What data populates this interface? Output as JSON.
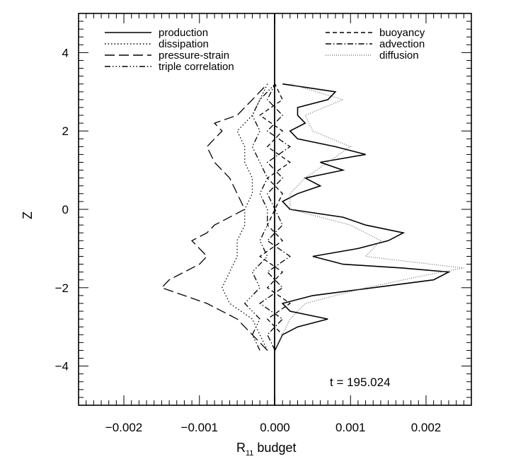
{
  "chart_data": {
    "type": "line",
    "title": "",
    "xlabel_main": "R",
    "xlabel_sub": "11",
    "xlabel_rest": " budget",
    "ylabel": "Z",
    "xlim": [
      -0.0026,
      0.0026
    ],
    "ylim": [
      -5,
      5
    ],
    "xticks": [
      -0.002,
      -0.001,
      0.0,
      0.001,
      0.002
    ],
    "xtick_labels": [
      "−0.002",
      "−0.001",
      "0.000",
      "0.001",
      "0.002"
    ],
    "yticks": [
      -4,
      -2,
      0,
      2,
      4
    ],
    "ytick_labels": [
      "−4",
      "−2",
      "0",
      "2",
      "4"
    ],
    "grid": false,
    "legend_placement": "top",
    "annotation": "t = 195.024",
    "series": [
      {
        "name": "production",
        "dash": "solid",
        "z": [
          -3.6,
          -3.4,
          -3.2,
          -3.0,
          -2.8,
          -2.6,
          -2.4,
          -2.2,
          -2.0,
          -1.8,
          -1.6,
          -1.5,
          -1.4,
          -1.2,
          -1.0,
          -0.8,
          -0.6,
          -0.4,
          -0.2,
          0.0,
          0.2,
          0.4,
          0.6,
          0.8,
          1.0,
          1.2,
          1.4,
          1.6,
          1.8,
          2.0,
          2.2,
          2.4,
          2.6,
          2.8,
          3.0,
          3.2
        ],
        "x": [
          0.0,
          5e-05,
          0.0001,
          0.0003,
          0.0007,
          0.0002,
          0.0001,
          0.0005,
          0.0013,
          0.0021,
          0.0023,
          0.0017,
          0.0009,
          0.0005,
          0.0011,
          0.0015,
          0.0017,
          0.0012,
          0.0009,
          0.0002,
          0.0001,
          0.0003,
          0.0006,
          0.0004,
          0.0009,
          0.0006,
          0.0012,
          0.0008,
          0.0003,
          0.0002,
          0.0004,
          0.0003,
          0.0003,
          0.0007,
          0.0008,
          0.0001
        ]
      },
      {
        "name": "dissipation",
        "dash": "dotted",
        "z": [
          -3.6,
          -3.2,
          -2.8,
          -2.4,
          -2.0,
          -1.6,
          -1.2,
          -0.8,
          -0.4,
          0.0,
          0.4,
          0.8,
          1.2,
          1.6,
          2.0,
          2.4,
          2.8,
          3.2
        ],
        "x": [
          -0.0001,
          -0.0002,
          -0.0003,
          -0.0006,
          -0.0007,
          -0.0006,
          -0.0005,
          -0.0005,
          -0.0004,
          -0.0004,
          -0.0003,
          -0.0003,
          -0.0004,
          -0.0004,
          -0.0005,
          -0.0003,
          -0.0002,
          -0.0001
        ]
      },
      {
        "name": "pressure-strain",
        "dash": "longdash",
        "z": [
          -3.6,
          -3.2,
          -2.8,
          -2.4,
          -2.2,
          -2.0,
          -1.8,
          -1.6,
          -1.4,
          -1.2,
          -1.0,
          -0.8,
          -0.6,
          -0.4,
          -0.2,
          0.0,
          0.4,
          0.8,
          1.2,
          1.6,
          1.8,
          2.0,
          2.2,
          2.4,
          2.8,
          3.2
        ],
        "x": [
          -0.0001,
          -0.0003,
          -0.0005,
          -0.0009,
          -0.0012,
          -0.0015,
          -0.0014,
          -0.0012,
          -0.001,
          -0.0009,
          -0.001,
          -0.0011,
          -0.0009,
          -0.0008,
          -0.0006,
          -0.0004,
          -0.0005,
          -0.0006,
          -0.0008,
          -0.0009,
          -0.0008,
          -0.0007,
          -0.0008,
          -0.0005,
          -0.0003,
          -0.0001
        ]
      },
      {
        "name": "triple correlation",
        "dash": "dashdotdotdot",
        "z": [
          -3.6,
          -3.2,
          -2.8,
          -2.4,
          -2.0,
          -1.6,
          -1.2,
          -0.8,
          -0.4,
          0.0,
          0.4,
          0.8,
          1.2,
          1.6,
          2.0,
          2.4,
          2.8,
          3.2
        ],
        "x": [
          -0.0002,
          -0.0003,
          -0.0002,
          -0.0004,
          -0.0002,
          -0.0003,
          -0.0001,
          -0.0002,
          -0.0001,
          -0.0001,
          -0.0002,
          -0.0001,
          -0.0002,
          -0.0003,
          -0.0002,
          -0.0003,
          -0.0002,
          0.0
        ]
      },
      {
        "name": "buoyancy",
        "dash": "dashed",
        "z": [
          -3.6,
          -3.2,
          -2.8,
          -2.4,
          -2.0,
          -1.6,
          -1.2,
          -0.8,
          -0.4,
          0.0,
          0.4,
          0.8,
          1.2,
          1.6,
          2.0,
          2.4,
          2.8,
          3.2
        ],
        "x": [
          0.0,
          0.0001,
          -0.0001,
          0.0002,
          -0.0001,
          0.0001,
          -0.0002,
          0.0001,
          -0.0001,
          0.0,
          0.0001,
          -0.0001,
          0.0002,
          -0.0001,
          0.0001,
          -0.0002,
          0.0001,
          0.0
        ]
      },
      {
        "name": "advection",
        "dash": "dashdot",
        "z": [
          -3.6,
          -3.2,
          -2.8,
          -2.4,
          -2.0,
          -1.6,
          -1.2,
          -0.8,
          -0.4,
          0.0,
          0.4,
          0.8,
          1.2,
          1.6,
          2.0,
          2.4,
          2.8,
          3.2
        ],
        "x": [
          0.0,
          -0.0001,
          0.0001,
          -0.0002,
          0.0001,
          -0.0001,
          0.0002,
          -0.0001,
          0.0001,
          0.0,
          -0.0001,
          0.0001,
          -0.0001,
          0.0002,
          -0.0001,
          0.0001,
          -0.0001,
          0.0
        ]
      },
      {
        "name": "diffusion",
        "dash": "finedot",
        "z": [
          -3.6,
          -3.2,
          -2.8,
          -2.4,
          -2.0,
          -1.6,
          -1.5,
          -1.2,
          -0.8,
          -0.4,
          0.0,
          0.4,
          0.8,
          1.2,
          1.6,
          2.0,
          2.4,
          2.8,
          3.2
        ],
        "x": [
          0.0,
          0.0001,
          0.0002,
          0.0004,
          0.0012,
          0.0022,
          0.0025,
          0.0012,
          0.0014,
          0.001,
          0.0002,
          0.0002,
          0.0004,
          0.0007,
          0.001,
          0.0005,
          0.0004,
          0.0009,
          0.0002
        ]
      }
    ],
    "legend_left": [
      "production",
      "dissipation",
      "pressure-strain",
      "triple correlation"
    ],
    "legend_right": [
      "buoyancy",
      "advection",
      "diffusion"
    ]
  }
}
